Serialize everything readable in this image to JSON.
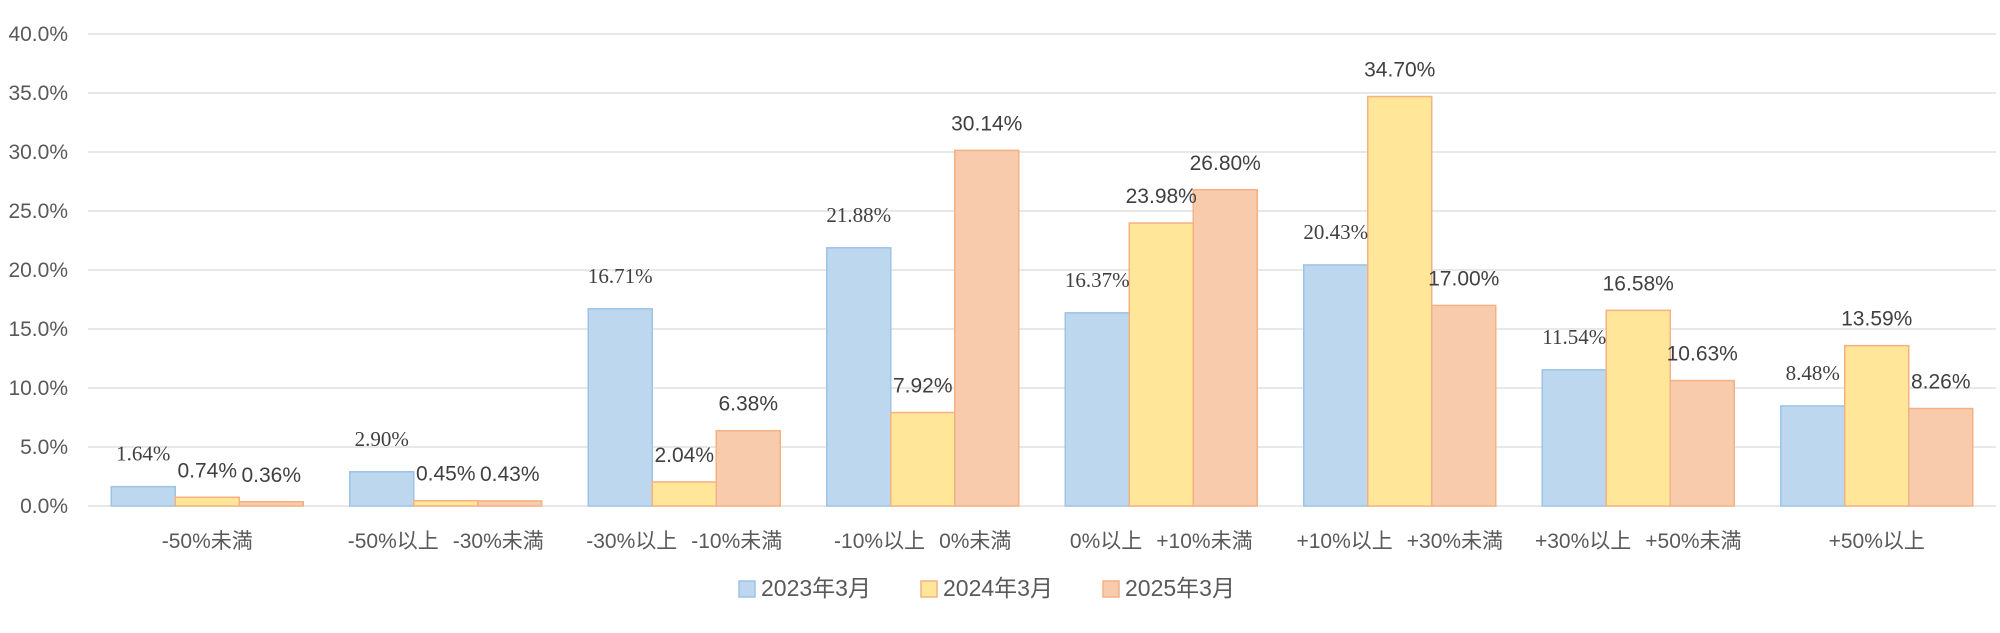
{
  "chart_data": {
    "type": "bar",
    "categories": [
      [
        "-50%未満"
      ],
      [
        "-50%以上",
        "-30%未満"
      ],
      [
        "-30%以上",
        "-10%未満"
      ],
      [
        "-10%以上",
        "0%未満"
      ],
      [
        "0%以上",
        "+10%未満"
      ],
      [
        "+10%以上",
        "+30%未満"
      ],
      [
        "+30%以上",
        "+50%未満"
      ],
      [
        "+50%以上"
      ]
    ],
    "series": [
      {
        "name": "2023年3月",
        "color": "#bdd7ee",
        "stroke": "#9dc3e6",
        "values": [
          1.64,
          2.9,
          16.71,
          21.88,
          16.37,
          20.43,
          11.54,
          8.48
        ],
        "labels": [
          "1.64%",
          "2.90%",
          "16.71%",
          "21.88%",
          "16.37%",
          "20.43%",
          "11.54%",
          "8.48%"
        ]
      },
      {
        "name": "2024年3月",
        "color": "#ffe699",
        "stroke": "#f4b183",
        "values": [
          0.74,
          0.45,
          2.04,
          7.92,
          23.98,
          34.7,
          16.58,
          13.59
        ],
        "labels": [
          "0.74%",
          "0.45%",
          "2.04%",
          "7.92%",
          "23.98%",
          "34.70%",
          "16.58%",
          "13.59%"
        ]
      },
      {
        "name": "2025年3月",
        "color": "#f8cbad",
        "stroke": "#f4b183",
        "values": [
          0.36,
          0.43,
          6.38,
          30.14,
          26.8,
          17.0,
          10.63,
          8.26
        ],
        "labels": [
          "0.36%",
          "0.43%",
          "6.38%",
          "30.14%",
          "26.80%",
          "17.00%",
          "10.63%",
          "8.26%"
        ]
      }
    ],
    "y_ticks": [
      "0.0%",
      "5.0%",
      "10.0%",
      "15.0%",
      "20.0%",
      "25.0%",
      "30.0%",
      "35.0%",
      "40.0%"
    ],
    "ylim": [
      0,
      40
    ],
    "grid": true,
    "legend_position": "bottom"
  }
}
